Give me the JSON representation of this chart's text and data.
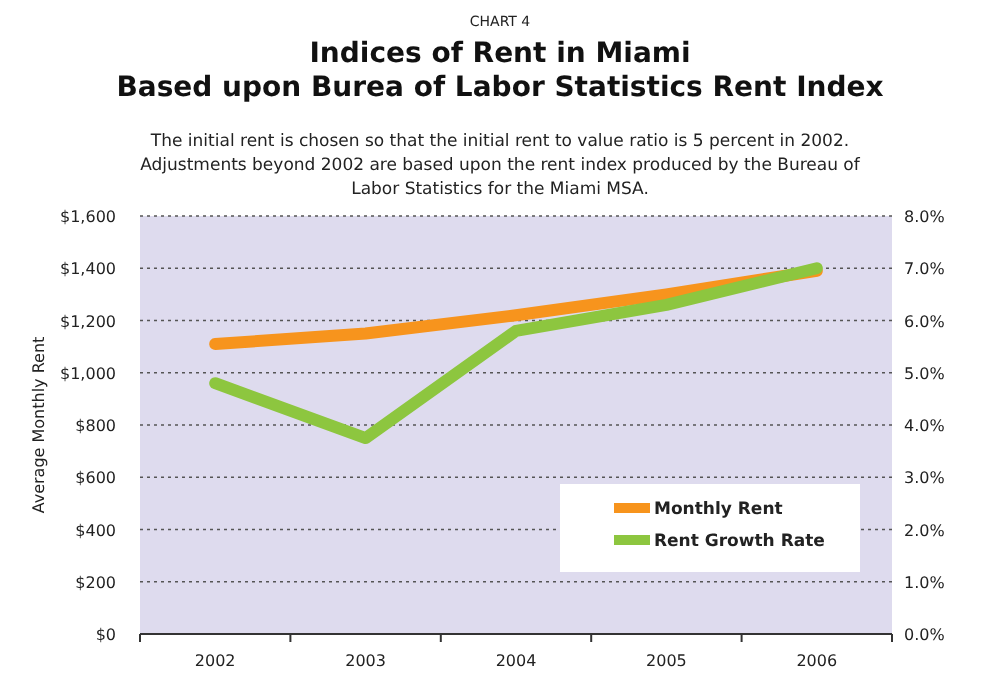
{
  "chart_data": {
    "type": "line",
    "title": "Indices of Rent in Miami\nBased upon Burea of Labor Statistics Rent Index",
    "subtitle": "The initial rent is chosen so that the initial rent to value ratio is 5 percent in 2002.\nAdjustments beyond 2002 are based upon the rent index produced by the Bureau of\nLabor Statistics for the Miami MSA.",
    "annotations": [
      "CHART 4"
    ],
    "ylabel": "Average Monthly Rent",
    "categories": [
      "2002",
      "2003",
      "2004",
      "2005",
      "2006"
    ],
    "series": [
      {
        "name": "Monthly Rent",
        "color": "#f7941d",
        "values": [
          1110,
          1150,
          1220,
          1300,
          1390
        ]
      },
      {
        "name": "Rent Growth Rate",
        "color": "#8dc63f",
        "axis": "y2",
        "values": [
          4.8,
          3.75,
          5.8,
          6.3,
          7.0
        ]
      }
    ],
    "ylim": [
      0,
      1600
    ],
    "yticks": [
      {
        "value": 0,
        "label": "$0"
      },
      {
        "value": 200,
        "label": "$200"
      },
      {
        "value": 400,
        "label": "$400"
      },
      {
        "value": 600,
        "label": "$600"
      },
      {
        "value": 800,
        "label": "$800"
      },
      {
        "value": 1000,
        "label": "$1,000"
      },
      {
        "value": 1200,
        "label": "$1,200"
      },
      {
        "value": 1400,
        "label": "$1,400"
      },
      {
        "value": 1600,
        "label": "$1,600"
      }
    ],
    "y2lim": [
      0,
      8
    ],
    "y2ticks": [
      {
        "value": 0,
        "label": "0.0%"
      },
      {
        "value": 1,
        "label": "1.0%"
      },
      {
        "value": 2,
        "label": "2.0%"
      },
      {
        "value": 3,
        "label": "3.0%"
      },
      {
        "value": 4,
        "label": "4.0%"
      },
      {
        "value": 5,
        "label": "5.0%"
      },
      {
        "value": 6,
        "label": "6.0%"
      },
      {
        "value": 7,
        "label": "7.0%"
      },
      {
        "value": 8,
        "label": "8.0%"
      }
    ],
    "grid": "y",
    "legend": "bottom right",
    "marker": "none",
    "line_style": "solid"
  }
}
